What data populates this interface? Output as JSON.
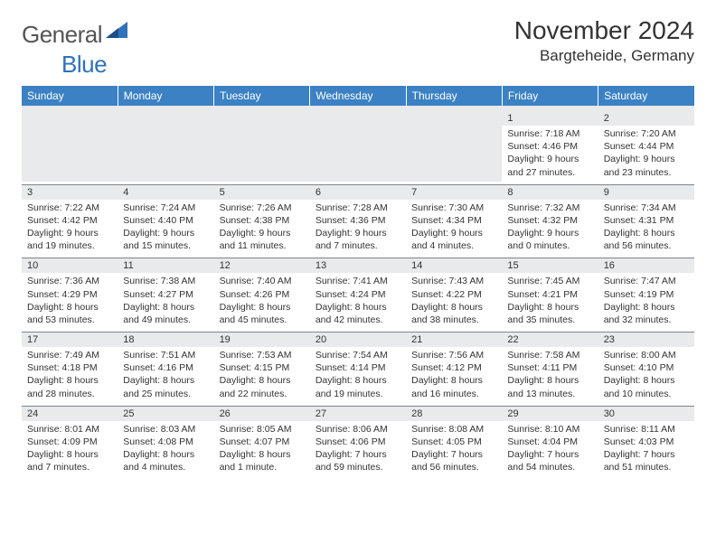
{
  "brand": {
    "word1": "General",
    "word2": "Blue"
  },
  "title": "November 2024",
  "location": "Bargteheide, Germany",
  "colors": {
    "header_bg": "#3b81c3",
    "header_text": "#ffffff",
    "daynum_bg": "#e9eaeb",
    "text": "#333333",
    "grid_line": "#7a8590",
    "logo_gray": "#555555",
    "logo_blue": "#2f72b9"
  },
  "typography": {
    "title_fontsize": 28,
    "location_fontsize": 17,
    "dayheader_fontsize": 12,
    "cell_fontsize": 10.5
  },
  "weekdays": [
    "Sunday",
    "Monday",
    "Tuesday",
    "Wednesday",
    "Thursday",
    "Friday",
    "Saturday"
  ],
  "leading_blanks": 5,
  "days": [
    {
      "n": "1",
      "sunrise": "Sunrise: 7:18 AM",
      "sunset": "Sunset: 4:46 PM",
      "daylight": "Daylight: 9 hours and 27 minutes."
    },
    {
      "n": "2",
      "sunrise": "Sunrise: 7:20 AM",
      "sunset": "Sunset: 4:44 PM",
      "daylight": "Daylight: 9 hours and 23 minutes."
    },
    {
      "n": "3",
      "sunrise": "Sunrise: 7:22 AM",
      "sunset": "Sunset: 4:42 PM",
      "daylight": "Daylight: 9 hours and 19 minutes."
    },
    {
      "n": "4",
      "sunrise": "Sunrise: 7:24 AM",
      "sunset": "Sunset: 4:40 PM",
      "daylight": "Daylight: 9 hours and 15 minutes."
    },
    {
      "n": "5",
      "sunrise": "Sunrise: 7:26 AM",
      "sunset": "Sunset: 4:38 PM",
      "daylight": "Daylight: 9 hours and 11 minutes."
    },
    {
      "n": "6",
      "sunrise": "Sunrise: 7:28 AM",
      "sunset": "Sunset: 4:36 PM",
      "daylight": "Daylight: 9 hours and 7 minutes."
    },
    {
      "n": "7",
      "sunrise": "Sunrise: 7:30 AM",
      "sunset": "Sunset: 4:34 PM",
      "daylight": "Daylight: 9 hours and 4 minutes."
    },
    {
      "n": "8",
      "sunrise": "Sunrise: 7:32 AM",
      "sunset": "Sunset: 4:32 PM",
      "daylight": "Daylight: 9 hours and 0 minutes."
    },
    {
      "n": "9",
      "sunrise": "Sunrise: 7:34 AM",
      "sunset": "Sunset: 4:31 PM",
      "daylight": "Daylight: 8 hours and 56 minutes."
    },
    {
      "n": "10",
      "sunrise": "Sunrise: 7:36 AM",
      "sunset": "Sunset: 4:29 PM",
      "daylight": "Daylight: 8 hours and 53 minutes."
    },
    {
      "n": "11",
      "sunrise": "Sunrise: 7:38 AM",
      "sunset": "Sunset: 4:27 PM",
      "daylight": "Daylight: 8 hours and 49 minutes."
    },
    {
      "n": "12",
      "sunrise": "Sunrise: 7:40 AM",
      "sunset": "Sunset: 4:26 PM",
      "daylight": "Daylight: 8 hours and 45 minutes."
    },
    {
      "n": "13",
      "sunrise": "Sunrise: 7:41 AM",
      "sunset": "Sunset: 4:24 PM",
      "daylight": "Daylight: 8 hours and 42 minutes."
    },
    {
      "n": "14",
      "sunrise": "Sunrise: 7:43 AM",
      "sunset": "Sunset: 4:22 PM",
      "daylight": "Daylight: 8 hours and 38 minutes."
    },
    {
      "n": "15",
      "sunrise": "Sunrise: 7:45 AM",
      "sunset": "Sunset: 4:21 PM",
      "daylight": "Daylight: 8 hours and 35 minutes."
    },
    {
      "n": "16",
      "sunrise": "Sunrise: 7:47 AM",
      "sunset": "Sunset: 4:19 PM",
      "daylight": "Daylight: 8 hours and 32 minutes."
    },
    {
      "n": "17",
      "sunrise": "Sunrise: 7:49 AM",
      "sunset": "Sunset: 4:18 PM",
      "daylight": "Daylight: 8 hours and 28 minutes."
    },
    {
      "n": "18",
      "sunrise": "Sunrise: 7:51 AM",
      "sunset": "Sunset: 4:16 PM",
      "daylight": "Daylight: 8 hours and 25 minutes."
    },
    {
      "n": "19",
      "sunrise": "Sunrise: 7:53 AM",
      "sunset": "Sunset: 4:15 PM",
      "daylight": "Daylight: 8 hours and 22 minutes."
    },
    {
      "n": "20",
      "sunrise": "Sunrise: 7:54 AM",
      "sunset": "Sunset: 4:14 PM",
      "daylight": "Daylight: 8 hours and 19 minutes."
    },
    {
      "n": "21",
      "sunrise": "Sunrise: 7:56 AM",
      "sunset": "Sunset: 4:12 PM",
      "daylight": "Daylight: 8 hours and 16 minutes."
    },
    {
      "n": "22",
      "sunrise": "Sunrise: 7:58 AM",
      "sunset": "Sunset: 4:11 PM",
      "daylight": "Daylight: 8 hours and 13 minutes."
    },
    {
      "n": "23",
      "sunrise": "Sunrise: 8:00 AM",
      "sunset": "Sunset: 4:10 PM",
      "daylight": "Daylight: 8 hours and 10 minutes."
    },
    {
      "n": "24",
      "sunrise": "Sunrise: 8:01 AM",
      "sunset": "Sunset: 4:09 PM",
      "daylight": "Daylight: 8 hours and 7 minutes."
    },
    {
      "n": "25",
      "sunrise": "Sunrise: 8:03 AM",
      "sunset": "Sunset: 4:08 PM",
      "daylight": "Daylight: 8 hours and 4 minutes."
    },
    {
      "n": "26",
      "sunrise": "Sunrise: 8:05 AM",
      "sunset": "Sunset: 4:07 PM",
      "daylight": "Daylight: 8 hours and 1 minute."
    },
    {
      "n": "27",
      "sunrise": "Sunrise: 8:06 AM",
      "sunset": "Sunset: 4:06 PM",
      "daylight": "Daylight: 7 hours and 59 minutes."
    },
    {
      "n": "28",
      "sunrise": "Sunrise: 8:08 AM",
      "sunset": "Sunset: 4:05 PM",
      "daylight": "Daylight: 7 hours and 56 minutes."
    },
    {
      "n": "29",
      "sunrise": "Sunrise: 8:10 AM",
      "sunset": "Sunset: 4:04 PM",
      "daylight": "Daylight: 7 hours and 54 minutes."
    },
    {
      "n": "30",
      "sunrise": "Sunrise: 8:11 AM",
      "sunset": "Sunset: 4:03 PM",
      "daylight": "Daylight: 7 hours and 51 minutes."
    }
  ]
}
